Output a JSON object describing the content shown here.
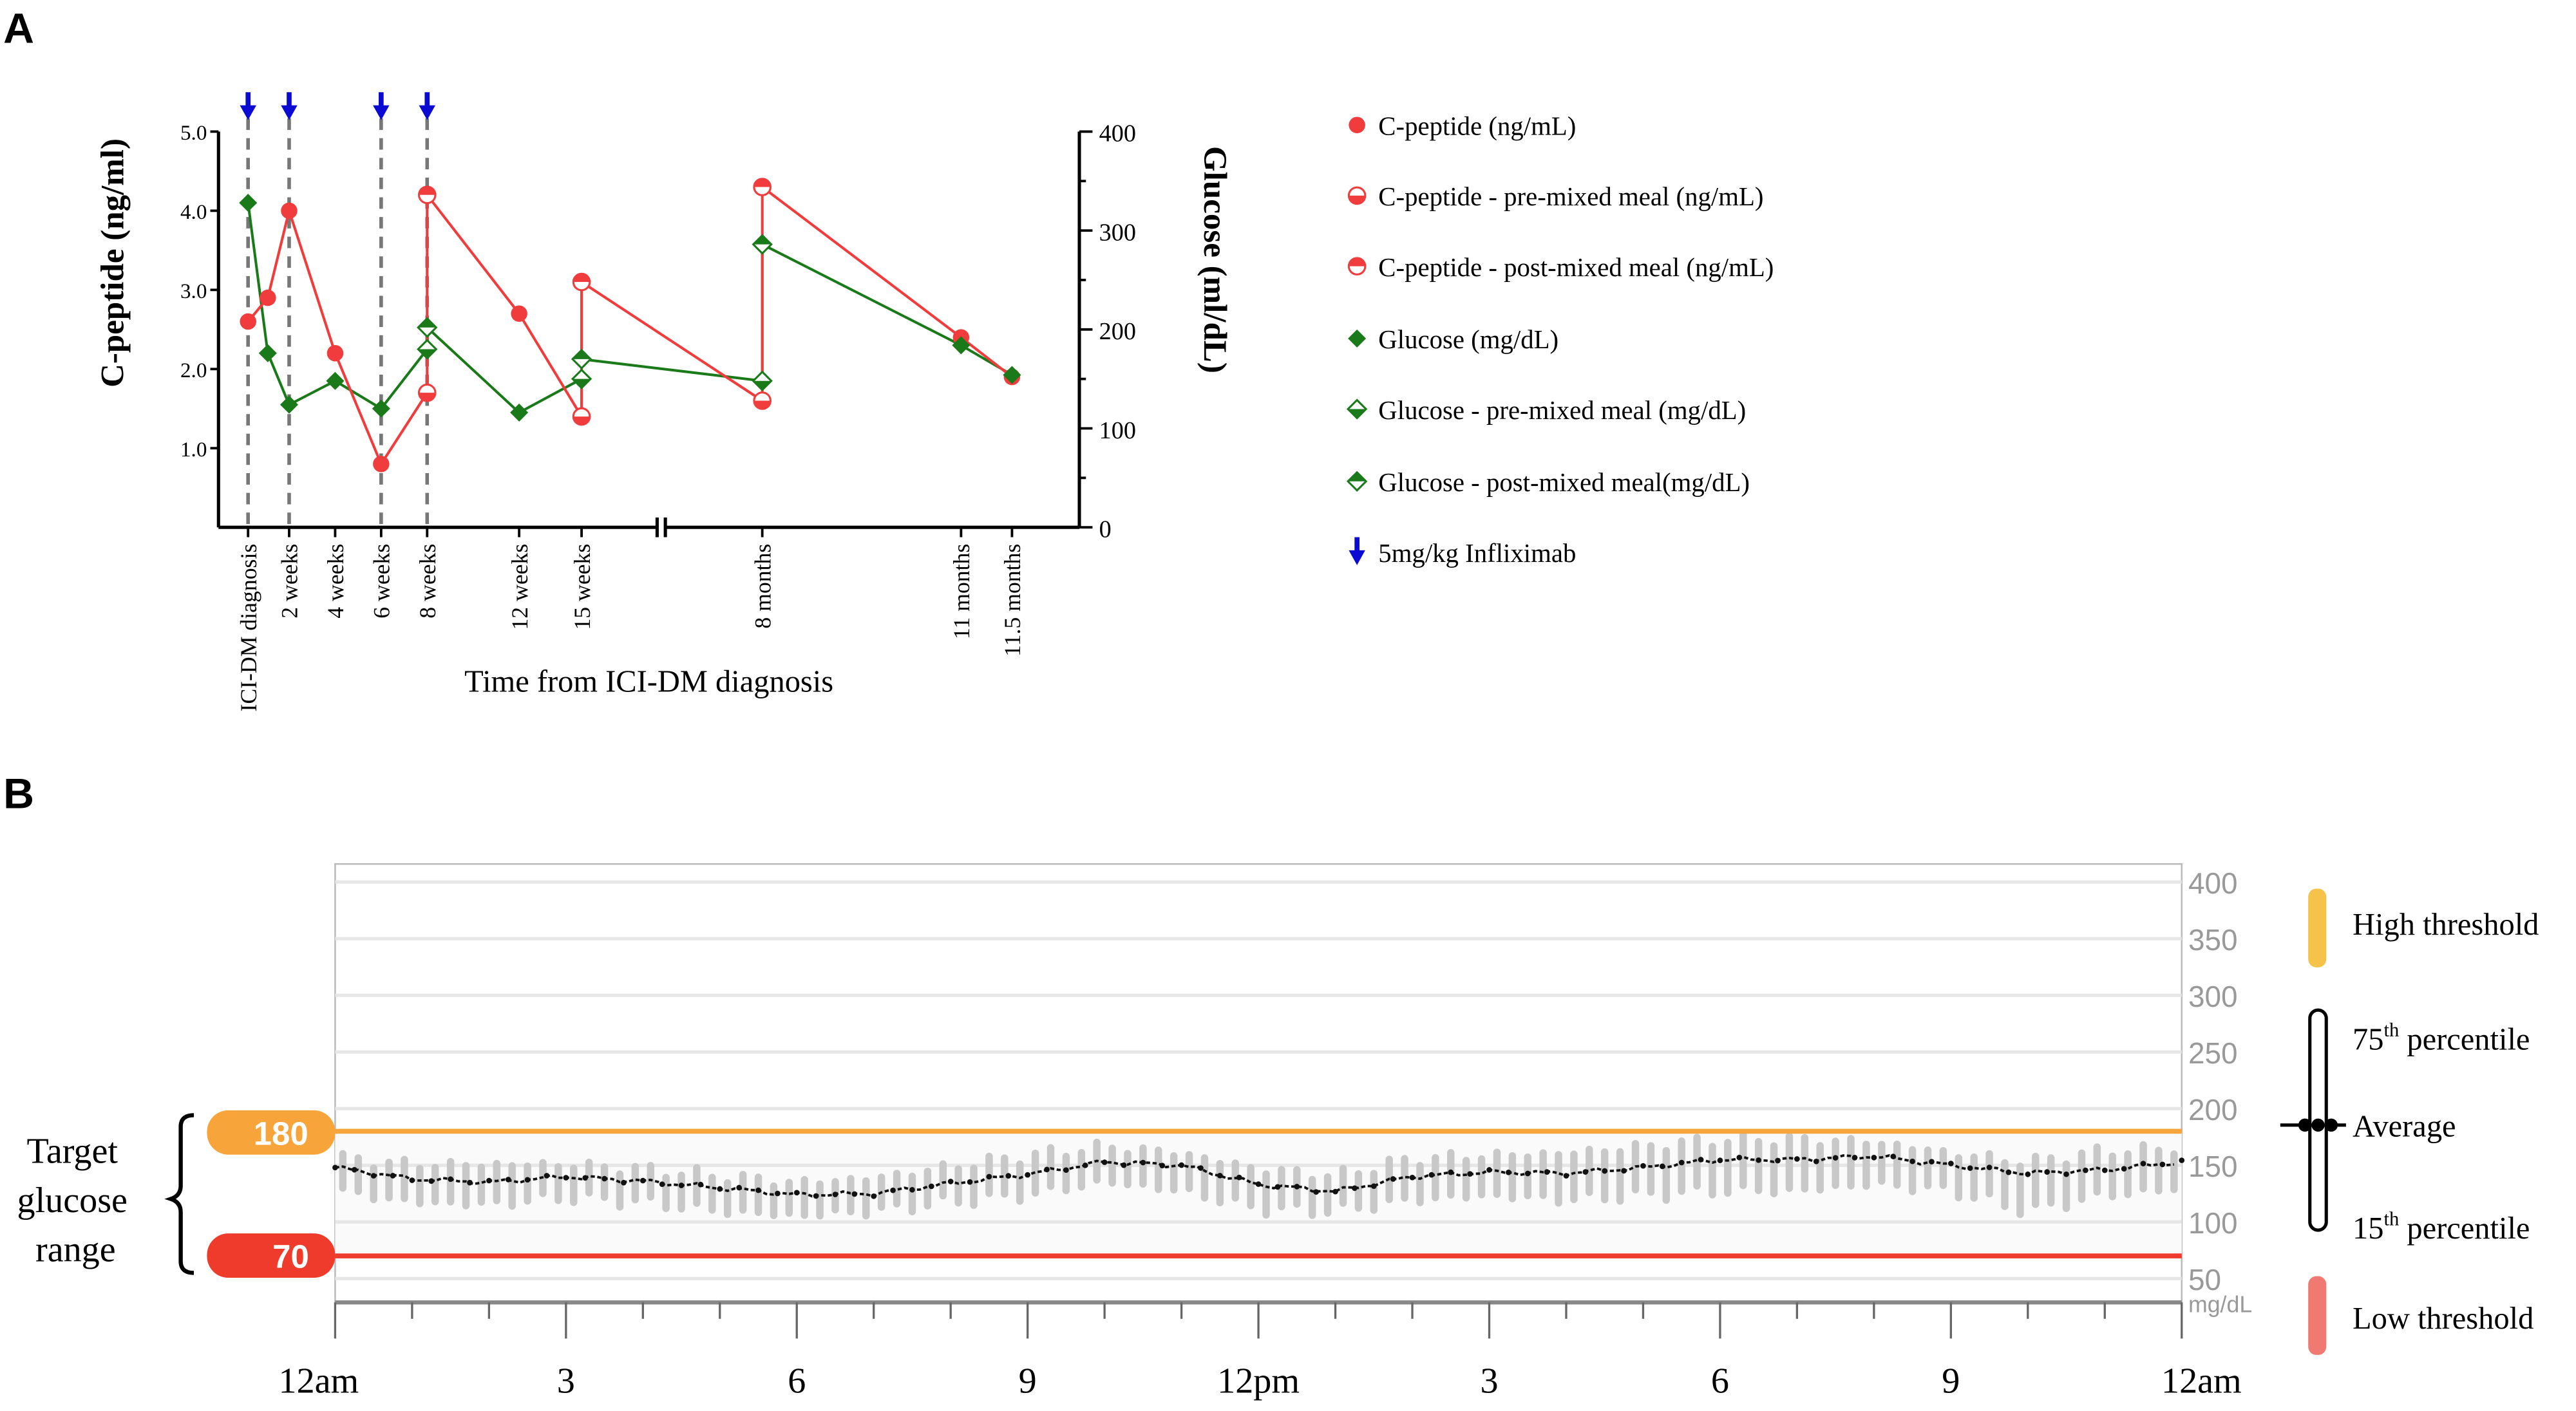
{
  "chart_data": [
    {
      "panel_label": "A",
      "type": "line",
      "xlabel": "Time from ICI-DM diagnosis",
      "ylabel_left": "C-peptide (ng/ml)",
      "ylabel_right": "Glucose (ml/dL)",
      "ylim_left": [
        0,
        5
      ],
      "ylim_right": [
        0,
        400
      ],
      "yticks_left": [
        "1.0",
        "2.0",
        "3.0",
        "4.0",
        "5.0"
      ],
      "yticks_right": [
        "0",
        "100",
        "200",
        "300",
        "400"
      ],
      "xticks": [
        "ICI-DM diagnosis",
        "2 weeks",
        "4 weeks",
        "6 weeks",
        "8 weeks",
        "12 weeks",
        "15 weeks",
        "8 months",
        "11 months",
        "11.5 months"
      ],
      "axis_break": "between 15 weeks and 8 months",
      "infliximab_doses": [
        "ICI-DM diagnosis",
        "2 weeks",
        "6 weeks",
        "8 weeks"
      ],
      "series": [
        {
          "name": "C-peptide (ng/mL)",
          "axis": "left",
          "color": "#f03c3c",
          "marker": "circle",
          "points": [
            [
              "ICI-DM diagnosis",
              2.6
            ],
            [
              "1 week",
              2.9
            ],
            [
              "2 weeks",
              4.0
            ],
            [
              "4 weeks",
              2.2
            ],
            [
              "6 weeks",
              0.8
            ],
            [
              "12 weeks",
              2.7
            ],
            [
              "11 months",
              2.4
            ],
            [
              "11.5 months",
              1.9
            ]
          ]
        },
        {
          "name": "C-peptide - pre-mixed meal (ng/mL)",
          "axis": "left",
          "color": "#f03c3c",
          "marker": "circle-half-bottom",
          "points": [
            [
              "8 weeks",
              1.7
            ],
            [
              "15 weeks",
              1.4
            ],
            [
              "8 months",
              1.6
            ]
          ]
        },
        {
          "name": "C-peptide - post-mixed meal (ng/mL)",
          "axis": "left",
          "color": "#f03c3c",
          "marker": "circle-half-top",
          "points": [
            [
              "8 weeks",
              4.2
            ],
            [
              "15 weeks",
              3.1
            ],
            [
              "8 months",
              4.3
            ]
          ]
        },
        {
          "name": "Glucose (mg/dL)",
          "axis": "right",
          "color": "#1a7a1a",
          "marker": "diamond",
          "points": [
            [
              "ICI-DM diagnosis",
              328
            ],
            [
              "1 week",
              176
            ],
            [
              "2 weeks",
              124
            ],
            [
              "4 weeks",
              148
            ],
            [
              "6 weeks",
              120
            ],
            [
              "12 weeks",
              116
            ],
            [
              "11 months",
              184
            ],
            [
              "11.5 months",
              154
            ]
          ]
        },
        {
          "name": "Glucose - pre-mixed meal (mg/dL)",
          "axis": "right",
          "color": "#1a7a1a",
          "marker": "diamond-half-bottom",
          "points": [
            [
              "8 weeks",
              180
            ],
            [
              "15 weeks",
              150
            ],
            [
              "8 months",
              148
            ]
          ]
        },
        {
          "name": "Glucose - post-mixed meal(mg/dL)",
          "axis": "right",
          "color": "#1a7a1a",
          "marker": "diamond-half-top",
          "points": [
            [
              "8 weeks",
              202
            ],
            [
              "15 weeks",
              170
            ],
            [
              "8 months",
              286
            ]
          ]
        }
      ],
      "red_line_order": [
        [
          "ICI-DM diagnosis",
          2.6
        ],
        [
          "1 week",
          2.9
        ],
        [
          "2 weeks",
          4.0
        ],
        [
          "4 weeks",
          2.2
        ],
        [
          "6 weeks",
          0.8
        ],
        [
          "8 weeks",
          1.7
        ],
        [
          "8 weeks",
          4.2
        ],
        [
          "12 weeks",
          2.7
        ],
        [
          "15 weeks",
          1.4
        ],
        [
          "15 weeks",
          3.1
        ],
        [
          "8 months",
          1.6
        ],
        [
          "8 months",
          4.3
        ],
        [
          "11 months",
          2.4
        ],
        [
          "11.5 months",
          1.9
        ]
      ],
      "green_line_order": [
        [
          "ICI-DM diagnosis",
          328
        ],
        [
          "1 week",
          176
        ],
        [
          "2 weeks",
          124
        ],
        [
          "4 weeks",
          148
        ],
        [
          "6 weeks",
          120
        ],
        [
          "8 weeks",
          180
        ],
        [
          "8 weeks",
          202
        ],
        [
          "12 weeks",
          116
        ],
        [
          "15 weeks",
          150
        ],
        [
          "15 weeks",
          170
        ],
        [
          "8 months",
          148
        ],
        [
          "8 months",
          286
        ],
        [
          "11 months",
          184
        ],
        [
          "11.5 months",
          154
        ]
      ],
      "legend": [
        {
          "label": "C-peptide (ng/mL)",
          "marker": "circle",
          "color": "#f03c3c"
        },
        {
          "label": "C-peptide - pre-mixed meal (ng/mL)",
          "marker": "circle-half-bottom",
          "color": "#f03c3c"
        },
        {
          "label": "C-peptide - post-mixed meal (ng/mL)",
          "marker": "circle-half-top",
          "color": "#f03c3c"
        },
        {
          "label": "Glucose (mg/dL)",
          "marker": "diamond",
          "color": "#1a7a1a"
        },
        {
          "label": "Glucose - pre-mixed meal (mg/dL)",
          "marker": "diamond-half-bottom",
          "color": "#1a7a1a"
        },
        {
          "label": "Glucose - post-mixed meal(mg/dL)",
          "marker": "diamond-half-top",
          "color": "#1a7a1a"
        },
        {
          "label": "5mg/kg Infliximab",
          "marker": "arrow-down",
          "color": "#0a0ad2"
        }
      ],
      "legend_position": "right"
    },
    {
      "panel_label": "B",
      "type": "line",
      "title": "",
      "ylim": [
        28,
        415
      ],
      "yticks": [
        "400",
        "350",
        "300",
        "250",
        "200",
        "150",
        "100",
        "50"
      ],
      "yunit": "mg/dL",
      "xticks": [
        "12am",
        "3",
        "6",
        "9",
        "12pm",
        "3",
        "6",
        "9",
        "12am"
      ],
      "x_hours": [
        0,
        24
      ],
      "high_threshold": 180,
      "low_threshold": 70,
      "high_label": "180",
      "low_label": "70",
      "target_label": [
        "Target",
        "glucose",
        "range"
      ],
      "hours": [
        0,
        1,
        2,
        3,
        4,
        5,
        6,
        7,
        8,
        9,
        10,
        11,
        12,
        13,
        14,
        15,
        16,
        17,
        18,
        19,
        20,
        21,
        22,
        23,
        24
      ],
      "average": [
        148,
        138,
        135,
        140,
        136,
        130,
        124,
        125,
        134,
        142,
        153,
        150,
        133,
        127,
        140,
        144,
        143,
        148,
        155,
        155,
        158,
        150,
        143,
        146,
        153
      ],
      "p75": [
        156,
        150,
        150,
        150,
        146,
        140,
        134,
        138,
        148,
        158,
        166,
        160,
        146,
        140,
        155,
        158,
        160,
        166,
        172,
        172,
        170,
        160,
        152,
        162,
        164
      ],
      "p15": [
        128,
        118,
        116,
        122,
        118,
        110,
        106,
        110,
        118,
        124,
        136,
        128,
        112,
        110,
        120,
        124,
        120,
        124,
        128,
        128,
        134,
        128,
        110,
        124,
        130
      ],
      "legend": [
        {
          "label": "High threshold",
          "color": "#f5c24a"
        },
        {
          "label": "75",
          "sup": "th",
          "suffix": " percentile"
        },
        {
          "label": "Average"
        },
        {
          "label": "15",
          "sup": "th",
          "suffix": " percentile"
        },
        {
          "label": "Low threshold",
          "color": "#f07a72"
        }
      ],
      "colors": {
        "high": "#f7a43a",
        "low": "#ef3b2c",
        "band": "#c8c8c8",
        "avg": "#111111",
        "grid": "#e6e6e6"
      }
    }
  ]
}
